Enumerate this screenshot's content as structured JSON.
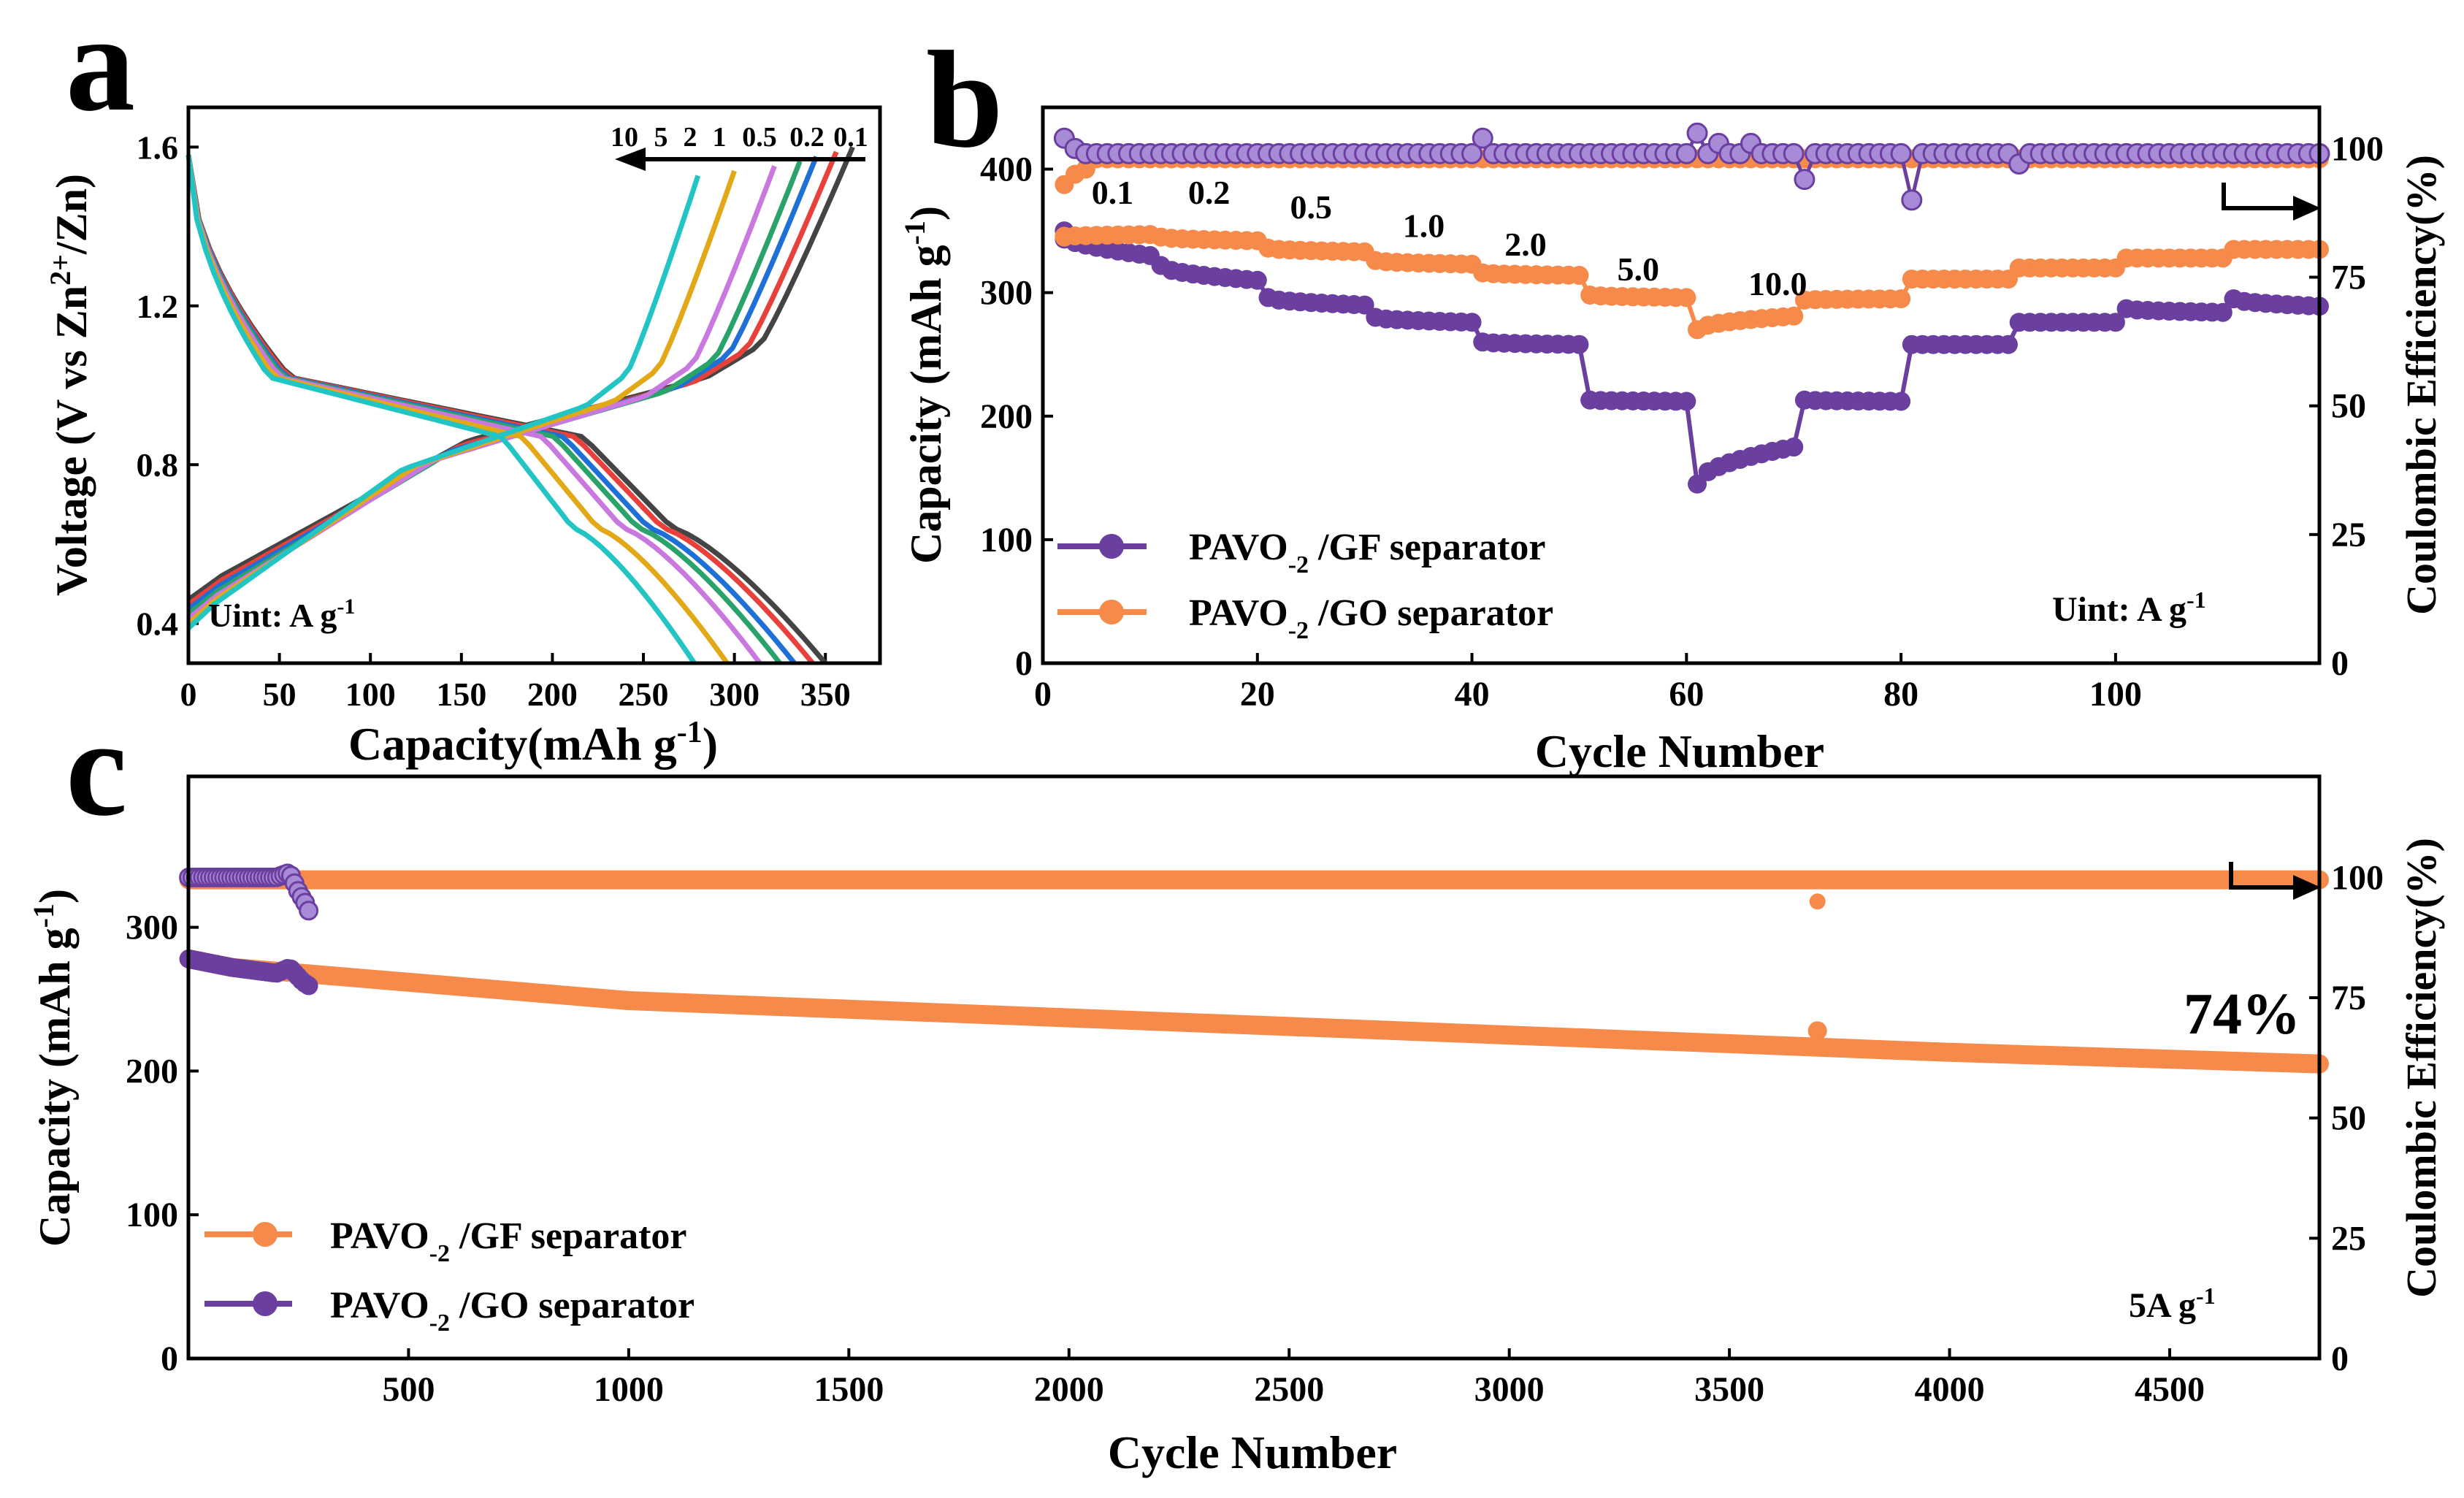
{
  "colors": {
    "axis": "#000000",
    "purple": "#6a3fa0",
    "purple_light": "#a88bd6",
    "orange": "#f58a4b",
    "orange_light": "#f9b287",
    "rate_curves": [
      "#444444",
      "#e8403a",
      "#1e6fd6",
      "#2aa36a",
      "#c978e0",
      "#e3a817",
      "#22c4c4"
    ]
  },
  "chart_data": [
    {
      "panel_label": "a",
      "type": "line",
      "xlabel": "Capacity(mAh g",
      "xlabel_sup": "-1",
      "xlabel_end": ")",
      "ylabel": "Voltage (V vs Zn",
      "ylabel_sup": "2+",
      "ylabel_end": "/Zn)",
      "xlim": [
        0,
        380
      ],
      "ylim": [
        0.3,
        1.7
      ],
      "xticks": [
        0,
        50,
        100,
        150,
        200,
        250,
        300,
        350
      ],
      "xtick_labels": [
        "0",
        "50",
        "100",
        "150",
        "200",
        "250",
        "300",
        "350"
      ],
      "yticks": [
        0.4,
        0.8,
        1.2,
        1.6
      ],
      "ytick_labels": [
        "0.4",
        "0.8",
        "1.2",
        "1.6"
      ],
      "annotation_unit": "Uint: A g",
      "annotation_unit_sup": "-1",
      "rate_labels": [
        "10",
        "5",
        "2",
        "1",
        "0.5",
        "0.2",
        "0.1"
      ],
      "series": [
        {
          "name": "0.1",
          "discharge_capacity": 350,
          "charge_capacity": 365
        },
        {
          "name": "0.2",
          "discharge_capacity": 343,
          "charge_capacity": 356
        },
        {
          "name": "0.5",
          "discharge_capacity": 333,
          "charge_capacity": 345
        },
        {
          "name": "1",
          "discharge_capacity": 325,
          "charge_capacity": 336
        },
        {
          "name": "2",
          "discharge_capacity": 314,
          "charge_capacity": 322
        },
        {
          "name": "5",
          "discharge_capacity": 296,
          "charge_capacity": 300
        },
        {
          "name": "10",
          "discharge_capacity": 278,
          "charge_capacity": 280
        }
      ]
    },
    {
      "panel_label": "b",
      "type": "scatter",
      "xlabel": "Cycle Number",
      "ylabel": "Capacity (mAh g",
      "ylabel_sup": "-1",
      "ylabel_end": ")",
      "ylabel_right": "Coulombic Efficiency(%)",
      "xlim": [
        0,
        119
      ],
      "ylim": [
        0,
        450
      ],
      "ylim_right": [
        0,
        108
      ],
      "xticks": [
        0,
        20,
        40,
        60,
        80,
        100
      ],
      "xtick_labels": [
        "0",
        "20",
        "40",
        "60",
        "80",
        "100"
      ],
      "yticks": [
        0,
        100,
        200,
        300,
        400
      ],
      "ytick_labels": [
        "0",
        "100",
        "200",
        "300",
        "400"
      ],
      "yticks_right": [
        0,
        25,
        50,
        75,
        100
      ],
      "ytick_labels_right": [
        "0",
        "25",
        "50",
        "75",
        "100"
      ],
      "rate_labels": [
        {
          "text": "0.1",
          "x": 6.5,
          "y": 372
        },
        {
          "text": "0.2",
          "x": 15.5,
          "y": 372
        },
        {
          "text": "0.5",
          "x": 25,
          "y": 360
        },
        {
          "text": "1.0",
          "x": 35.5,
          "y": 345
        },
        {
          "text": "2.0",
          "x": 45,
          "y": 330
        },
        {
          "text": "5.0",
          "x": 55.5,
          "y": 310
        },
        {
          "text": "10.0",
          "x": 68.5,
          "y": 298
        }
      ],
      "annotation_unit": "Uint: A g",
      "annotation_unit_sup": "-1",
      "legend": [
        {
          "name": "PAVO",
          "sub": "-2",
          "suffix": " /GF separator",
          "color_key": "purple"
        },
        {
          "name": "PAVO",
          "sub": "-2",
          "suffix": " /GO separator",
          "color_key": "orange"
        }
      ],
      "series": [
        {
          "name": "PAVO-2 /GF separator",
          "color_key": "purple",
          "steps": [
            [
              1,
              10,
              350,
              330
            ],
            [
              11,
              20,
              322,
              310
            ],
            [
              21,
              30,
              296,
              290
            ],
            [
              31,
              40,
              280,
              276
            ],
            [
              41,
              50,
              260,
              258
            ],
            [
              51,
              60,
              213,
              212
            ],
            [
              61,
              70,
              145,
              175
            ],
            [
              71,
              80,
              213,
              212
            ],
            [
              81,
              90,
              258,
              258
            ],
            [
              91,
              100,
              276,
              276
            ],
            [
              101,
              110,
              287,
              284
            ],
            [
              111,
              119,
              295,
              289
            ]
          ]
        },
        {
          "name": "PAVO-2 /GO separator",
          "color_key": "orange",
          "steps": [
            [
              1,
              10,
              345,
              347
            ],
            [
              11,
              20,
              345,
              342
            ],
            [
              21,
              30,
              336,
              333
            ],
            [
              31,
              40,
              326,
              323
            ],
            [
              41,
              50,
              316,
              314
            ],
            [
              51,
              60,
              298,
              296
            ],
            [
              61,
              70,
              270,
              281
            ],
            [
              71,
              80,
              294,
              295
            ],
            [
              81,
              90,
              311,
              311
            ],
            [
              91,
              100,
              320,
              320
            ],
            [
              101,
              110,
              328,
              328
            ],
            [
              111,
              119,
              335,
              335
            ]
          ]
        }
      ],
      "efficiency": {
        "baseline_purple": 99,
        "baseline_orange": 98,
        "spikes": [
          {
            "cycle": 2,
            "value": 102
          },
          {
            "cycle": 3,
            "value": 100
          },
          {
            "cycle": 41,
            "value": 102
          },
          {
            "cycle": 61,
            "value": 103
          },
          {
            "cycle": 63,
            "value": 101
          },
          {
            "cycle": 66,
            "value": 101
          },
          {
            "cycle": 71,
            "value": 94
          },
          {
            "cycle": 81,
            "value": 90
          },
          {
            "cycle": 91,
            "value": 97
          }
        ],
        "orange_start": [
          {
            "cycle": 2,
            "value": 93
          },
          {
            "cycle": 3,
            "value": 95
          },
          {
            "cycle": 4,
            "value": 96
          }
        ]
      }
    },
    {
      "panel_label": "c",
      "type": "scatter",
      "xlabel": "Cycle Number",
      "ylabel": "Capacity (mAh g",
      "ylabel_sup": "-1",
      "ylabel_end": ")",
      "ylabel_right": "Coulombic Efficiency(%)",
      "xlim": [
        0,
        4840
      ],
      "ylim": [
        0,
        405
      ],
      "ylim_right": [
        0,
        121
      ],
      "xticks": [
        500,
        1000,
        1500,
        2000,
        2500,
        3000,
        3500,
        4000,
        4500
      ],
      "xtick_labels": [
        "500",
        "1000",
        "1500",
        "2000",
        "2500",
        "3000",
        "3500",
        "4000",
        "4500"
      ],
      "yticks": [
        0,
        100,
        200,
        300
      ],
      "ytick_labels": [
        "0",
        "100",
        "200",
        "300"
      ],
      "yticks_right": [
        0,
        25,
        50,
        75,
        100
      ],
      "ytick_labels_right": [
        "0",
        "25",
        "50",
        "75",
        "100"
      ],
      "retention_label": "74%",
      "annotation_unit": "5A g",
      "annotation_unit_sup": "-1",
      "legend": [
        {
          "name": "PAVO",
          "sub": "-2",
          "suffix": " /GF separator",
          "color_key": "orange"
        },
        {
          "name": "PAVO",
          "sub": "-2",
          "suffix": " /GO separator",
          "color_key": "purple"
        }
      ],
      "series": [
        {
          "name": "PAVO-2 /GF separator",
          "color_key": "orange",
          "x": [
            1,
            100,
            1000,
            2000,
            3000,
            4000,
            4840
          ],
          "y": [
            278,
            272,
            249,
            237,
            225,
            213,
            205
          ]
        },
        {
          "name": "PAVO-2 /GO separator",
          "color_key": "purple",
          "x": [
            1,
            100,
            200,
            230,
            260,
            280
          ],
          "y": [
            278,
            272,
            268,
            272,
            262,
            258
          ]
        }
      ],
      "efficiency": {
        "orange_baseline": 99.5,
        "purple_x": [
          1,
          100,
          200,
          230,
          250,
          270,
          280
        ],
        "purple_y": [
          100,
          100,
          100,
          101,
          97,
          94,
          91
        ],
        "outlier_capacity": {
          "cycle": 3700,
          "value": 228
        },
        "outlier_efficiency": {
          "cycle": 3700,
          "value": 95
        }
      }
    }
  ]
}
